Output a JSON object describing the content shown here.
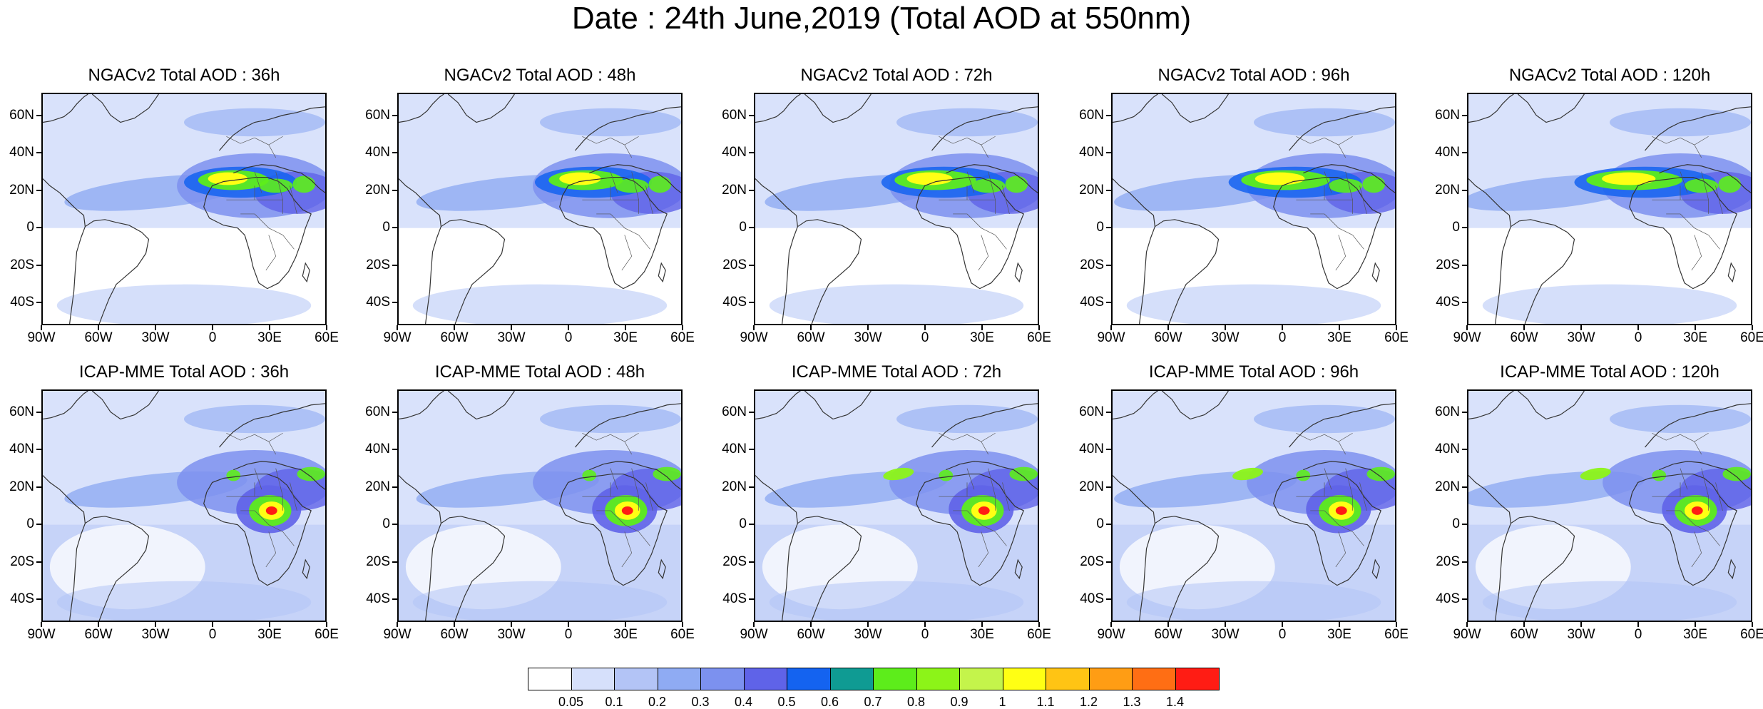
{
  "title": "Date : 24th June,2019 (Total AOD at 550nm)",
  "panels": [
    {
      "title": "NGACv2 Total AOD : 36h",
      "model": "NGAC",
      "hour": 36
    },
    {
      "title": "NGACv2 Total AOD : 48h",
      "model": "NGAC",
      "hour": 48
    },
    {
      "title": "NGACv2 Total AOD : 72h",
      "model": "NGAC",
      "hour": 72
    },
    {
      "title": "NGACv2 Total AOD : 96h",
      "model": "NGAC",
      "hour": 96
    },
    {
      "title": "NGACv2 Total AOD : 120h",
      "model": "NGAC",
      "hour": 120
    },
    {
      "title": "ICAP-MME Total AOD : 36h",
      "model": "ICAP",
      "hour": 36
    },
    {
      "title": "ICAP-MME Total AOD : 48h",
      "model": "ICAP",
      "hour": 48
    },
    {
      "title": "ICAP-MME Total AOD : 72h",
      "model": "ICAP",
      "hour": 72
    },
    {
      "title": "ICAP-MME Total AOD : 96h",
      "model": "ICAP",
      "hour": 96
    },
    {
      "title": "ICAP-MME Total AOD : 120h",
      "model": "ICAP",
      "hour": 120
    }
  ],
  "lat_ticks": [
    "60N",
    "40N",
    "20N",
    "0",
    "20S",
    "40S"
  ],
  "lon_ticks": [
    "90W",
    "60W",
    "30W",
    "0",
    "30E",
    "60E"
  ],
  "colorbar": {
    "labels": [
      "0.05",
      "0.1",
      "0.2",
      "0.3",
      "0.4",
      "0.5",
      "0.6",
      "0.7",
      "0.8",
      "0.9",
      "1",
      "1.1",
      "1.2",
      "1.3",
      "1.4"
    ],
    "colors": [
      "#ffffff",
      "#d6e0fb",
      "#b3c4f6",
      "#8fabf3",
      "#7c91ef",
      "#5f63e8",
      "#1463f0",
      "#0f9b93",
      "#5ded1b",
      "#8cf418",
      "#c4f44b",
      "#ffff14",
      "#ffc414",
      "#ff9d14",
      "#ff6e14",
      "#ff1c14"
    ]
  }
}
